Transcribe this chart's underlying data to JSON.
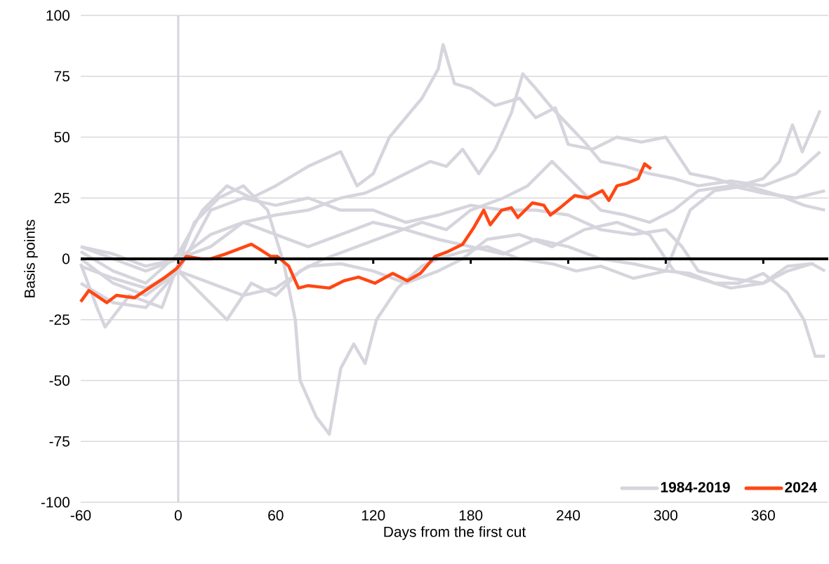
{
  "chart_data": {
    "type": "line",
    "xlabel": "Days from the first cut",
    "ylabel": "Basis points",
    "xlim": [
      -60,
      400
    ],
    "ylim": [
      -100,
      100
    ],
    "xticks": [
      -60,
      0,
      60,
      120,
      180,
      240,
      300,
      360
    ],
    "yticks": [
      -100,
      -75,
      -50,
      -25,
      0,
      25,
      50,
      75,
      100
    ],
    "grid": "y",
    "legend": "bottom right",
    "ref_lines": [
      {
        "axis": "x",
        "value": 0,
        "color": "#d6d5dd"
      },
      {
        "axis": "y",
        "value": 0,
        "color": "#000000"
      }
    ],
    "series": [
      {
        "name": "1984-2019",
        "color": "#d6d5dd",
        "x": [
          -60,
          -40,
          -20,
          0,
          15,
          30,
          45,
          60,
          80,
          100,
          110,
          120,
          130,
          140,
          150,
          160,
          163,
          170,
          180,
          195,
          210,
          220,
          232,
          240,
          255,
          270,
          285,
          300,
          315,
          330,
          345,
          360,
          370,
          378,
          384,
          395
        ],
        "values": [
          3,
          -5,
          -10,
          2,
          20,
          30,
          25,
          30,
          38,
          44,
          30,
          35,
          50,
          58,
          66,
          78,
          88,
          72,
          70,
          63,
          66,
          58,
          62,
          47,
          45,
          50,
          48,
          50,
          35,
          33,
          30,
          33,
          40,
          55,
          44,
          61
        ]
      },
      {
        "color": "#d6d5dd",
        "x": [
          -60,
          -50,
          -45,
          -30,
          -10,
          0,
          10,
          25,
          40,
          55,
          65,
          72,
          75,
          85,
          93,
          100,
          108,
          115,
          122,
          135,
          150,
          160,
          175,
          190,
          210,
          230,
          245,
          260,
          280,
          300,
          315,
          330,
          345,
          360,
          375,
          385,
          392,
          398
        ],
        "values": [
          -2,
          -20,
          -28,
          -15,
          -20,
          -2,
          15,
          25,
          30,
          20,
          -2,
          -25,
          -50,
          -65,
          -72,
          -45,
          -35,
          -43,
          -25,
          -12,
          -3,
          0,
          3,
          5,
          0,
          -2,
          -5,
          -3,
          -8,
          -5,
          -6,
          -10,
          -10,
          -6,
          -14,
          -25,
          -40,
          -40
        ]
      },
      {
        "color": "#d6d5dd",
        "x": [
          -60,
          -40,
          -20,
          0,
          20,
          40,
          60,
          80,
          100,
          115,
          125,
          140,
          155,
          165,
          175,
          185,
          195,
          205,
          212,
          220,
          230,
          240,
          250,
          260,
          275,
          290,
          305,
          320,
          340,
          360,
          380,
          395
        ],
        "values": [
          5,
          0,
          -5,
          0,
          10,
          15,
          18,
          20,
          25,
          27,
          30,
          35,
          40,
          38,
          45,
          35,
          45,
          60,
          76,
          70,
          62,
          55,
          48,
          40,
          38,
          35,
          33,
          30,
          32,
          30,
          35,
          44
        ]
      },
      {
        "color": "#d6d5dd",
        "x": [
          -60,
          -40,
          -20,
          0,
          20,
          40,
          60,
          80,
          100,
          120,
          140,
          160,
          180,
          200,
          220,
          240,
          260,
          280,
          300,
          310,
          320,
          340,
          360,
          375,
          390,
          398
        ],
        "values": [
          0,
          -10,
          -15,
          -5,
          20,
          25,
          22,
          25,
          20,
          20,
          15,
          18,
          22,
          20,
          20,
          18,
          12,
          10,
          12,
          5,
          -5,
          -8,
          -10,
          -5,
          -2,
          -5
        ]
      },
      {
        "color": "#d6d5dd",
        "x": [
          -60,
          -40,
          -20,
          0,
          15,
          30,
          45,
          60,
          75,
          90,
          110,
          130,
          150,
          165,
          180,
          200,
          215,
          230,
          245,
          260,
          275,
          290,
          305,
          320,
          340,
          360,
          380,
          398
        ],
        "values": [
          -10,
          -18,
          -20,
          -5,
          -15,
          -25,
          -10,
          -15,
          -5,
          0,
          5,
          10,
          15,
          12,
          20,
          25,
          30,
          40,
          30,
          20,
          18,
          15,
          20,
          28,
          30,
          27,
          25,
          28
        ]
      },
      {
        "color": "#d6d5dd",
        "x": [
          -60,
          -40,
          -20,
          0,
          20,
          40,
          60,
          80,
          100,
          120,
          140,
          160,
          180,
          200,
          220,
          240,
          260,
          280,
          300,
          315,
          330,
          350,
          370,
          385,
          398
        ],
        "values": [
          5,
          2,
          -3,
          0,
          5,
          15,
          10,
          5,
          10,
          15,
          12,
          8,
          5,
          2,
          8,
          5,
          0,
          -2,
          -5,
          20,
          28,
          30,
          26,
          22,
          20
        ]
      },
      {
        "color": "#d6d5dd",
        "x": [
          -60,
          -40,
          -20,
          0,
          20,
          40,
          60,
          80,
          100,
          120,
          140,
          160,
          175,
          190,
          210,
          230,
          250,
          270,
          290,
          305,
          320,
          340,
          360,
          375,
          390
        ],
        "values": [
          -3,
          -8,
          -12,
          -5,
          -10,
          -15,
          -12,
          -3,
          -2,
          -5,
          -10,
          -5,
          0,
          8,
          10,
          5,
          12,
          15,
          10,
          -5,
          -8,
          -12,
          -10,
          -3,
          -2
        ]
      },
      {
        "name": "2024",
        "color": "#ff4713",
        "x": [
          -60,
          -55,
          -44,
          -38,
          -27,
          -18,
          -8,
          -1,
          5,
          14,
          20,
          29,
          37,
          45,
          50,
          57,
          61,
          68,
          74,
          80,
          93,
          102,
          111,
          121,
          132,
          141,
          149,
          158,
          166,
          175,
          182,
          188,
          192,
          199,
          205,
          209,
          218,
          225,
          229,
          235,
          244,
          252,
          261,
          265,
          270,
          276,
          283,
          287,
          291
        ],
        "values": [
          -17.6,
          -13,
          -18,
          -15,
          -16,
          -12,
          -7.5,
          -4,
          1,
          0,
          0,
          2,
          4,
          6,
          4,
          1,
          1,
          -3,
          -12,
          -11,
          -12,
          -9,
          -7.5,
          -10,
          -6,
          -9,
          -6,
          1,
          3,
          6,
          13,
          20,
          14,
          20,
          21,
          17,
          23,
          22,
          18,
          21,
          26,
          25,
          28,
          24,
          30,
          31,
          33,
          39,
          37
        ]
      }
    ]
  }
}
